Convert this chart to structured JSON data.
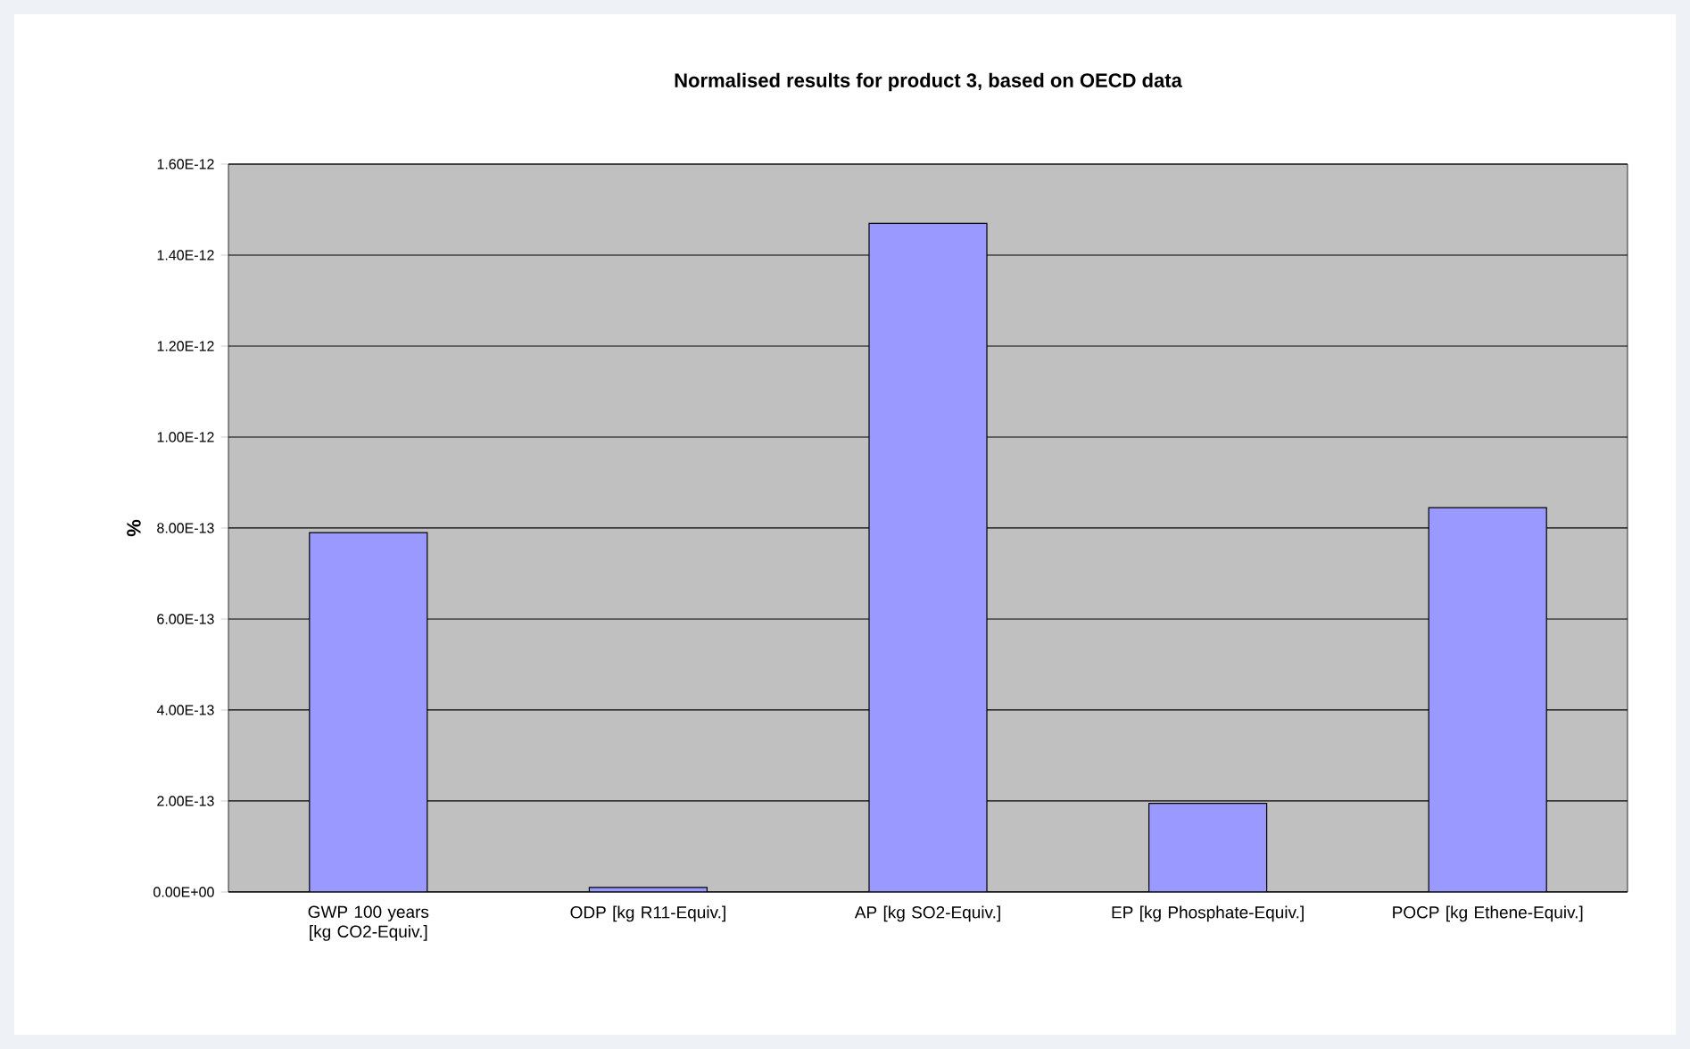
{
  "chart_data": {
    "type": "bar",
    "title": "Normalised results for product 3, based on OECD data",
    "ylabel": "%",
    "categories": [
      "GWP 100 years [kg CO2-Equiv.]",
      "ODP [kg R11-Equiv.]",
      "AP [kg SO2-Equiv.]",
      "EP [kg Phosphate-Equiv.]",
      "POCP [kg Ethene-Equiv.]"
    ],
    "values": [
      7.9e-13,
      1e-14,
      1.47e-12,
      1.95e-13,
      8.45e-13
    ],
    "color": "#9999ff",
    "ylim": [
      0,
      1.6e-12
    ],
    "yticks": [
      {
        "value": 0,
        "label": "0.00E+00"
      },
      {
        "value": 2e-13,
        "label": "2.00E-13"
      },
      {
        "value": 4e-13,
        "label": "4.00E-13"
      },
      {
        "value": 6e-13,
        "label": "6.00E-13"
      },
      {
        "value": 8e-13,
        "label": "8.00E-13"
      },
      {
        "value": 1e-12,
        "label": "1.00E-12"
      },
      {
        "value": 1.2e-12,
        "label": "1.20E-12"
      },
      {
        "value": 1.4e-12,
        "label": "1.40E-12"
      },
      {
        "value": 1.6e-12,
        "label": "1.60E-12"
      }
    ],
    "grid": "y"
  }
}
